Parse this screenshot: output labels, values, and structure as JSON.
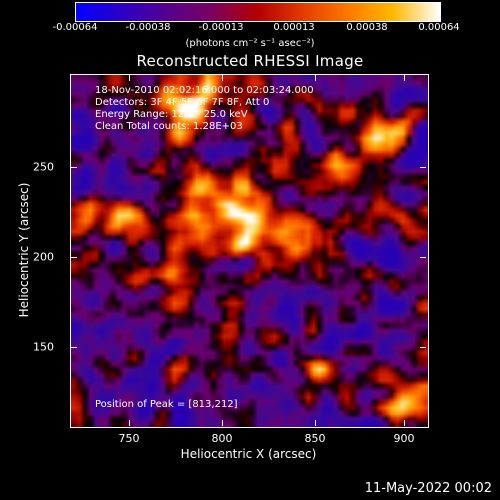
{
  "colorbar": {
    "ticks": [
      "-0.00064",
      "-0.00038",
      "-0.00013",
      "0.00013",
      "0.00038",
      "0.00064"
    ],
    "unit": "(photons cm⁻² s⁻¹ asec⁻²)"
  },
  "title": "Reconstructed RHESSI Image",
  "annotations": {
    "time": "18-Nov-2010 02:02:16.000 to 02:03:24.000",
    "detectors": "Detectors: 3F 4F 5F 6F 7F 8F, Att 0",
    "energy": "Energy Range: 12.0 - 25.0 keV",
    "clean": "Clean     Total counts: 1.28E+03",
    "peak": "Position of Peak = [813,212]"
  },
  "chart_data": {
    "type": "heatmap",
    "xlabel": "Heliocentric X (arcsec)",
    "ylabel": "Heliocentric Y (arcsec)",
    "xticks": [
      "750",
      "800",
      "850",
      "900"
    ],
    "yticks": [
      "250",
      "200",
      "150"
    ],
    "xlim": [
      720,
      912
    ],
    "ylim": [
      104,
      294
    ],
    "peak_position": [
      813,
      212
    ]
  },
  "footer": "11-May-2022 00:02"
}
